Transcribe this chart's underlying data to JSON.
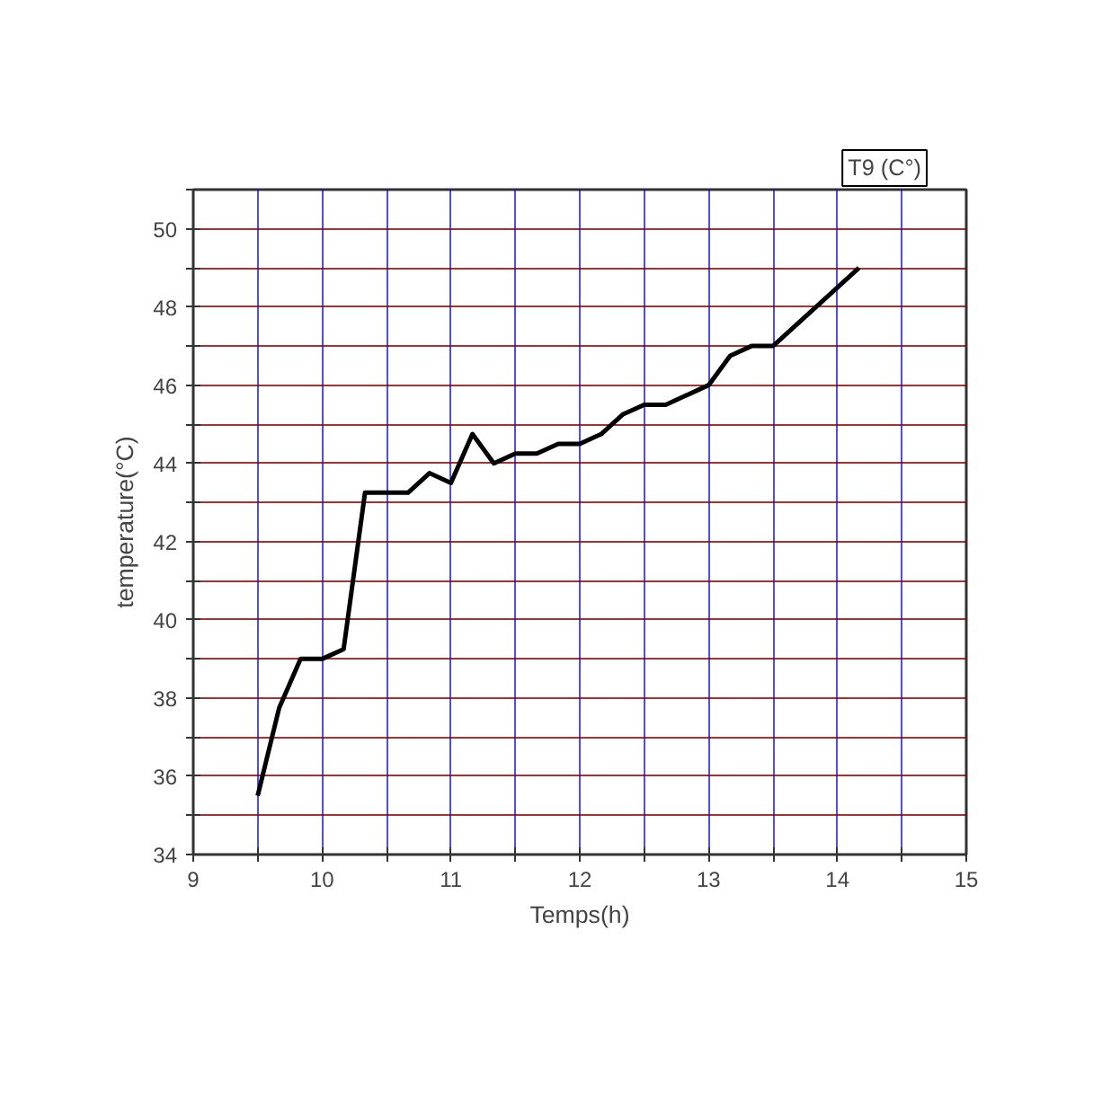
{
  "chart_data": {
    "type": "line",
    "title": "T9 (C°)",
    "xlabel": "Temps(h)",
    "ylabel": "temperature(°C)",
    "x": [
      9.5,
      9.667,
      9.833,
      10,
      10.167,
      10.333,
      10.667,
      10.833,
      11,
      11.167,
      11.333,
      11.5,
      11.667,
      11.833,
      12,
      12.167,
      12.333,
      12.5,
      12.667,
      13,
      13.167,
      13.333,
      13.5,
      14.167
    ],
    "series": [
      {
        "color": "#000000",
        "values": [
          35.5,
          37.75,
          39,
          39,
          39.25,
          43.25,
          43.25,
          43.75,
          43.5,
          44.75,
          44,
          44.25,
          44.25,
          44.5,
          44.5,
          44.75,
          45.25,
          45.5,
          45.5,
          46,
          46.75,
          47,
          47,
          49
        ]
      }
    ],
    "xlim": [
      9,
      15
    ],
    "ylim": [
      34,
      51
    ],
    "xticks": [
      9,
      {
        "value": 9.5,
        "label": null
      },
      10,
      {
        "value": 10.5,
        "label": null
      },
      11,
      {
        "value": 11.5,
        "label": null
      },
      12,
      {
        "value": 12.5,
        "label": null
      },
      13,
      {
        "value": 13.5,
        "label": null
      },
      14,
      {
        "value": 14.5,
        "label": null
      },
      15
    ],
    "yticks": [
      34,
      {
        "value": 35,
        "label": null
      },
      36,
      {
        "value": 37,
        "label": null
      },
      38,
      {
        "value": 39,
        "label": null
      },
      40,
      {
        "value": 41,
        "label": null
      },
      42,
      {
        "value": 43,
        "label": null
      },
      44,
      {
        "value": 45,
        "label": null
      },
      46,
      {
        "value": 47,
        "label": null
      },
      48,
      {
        "value": 49,
        "label": null
      },
      50,
      {
        "value": 51,
        "label": null
      }
    ],
    "grid": true,
    "marker": "none",
    "line_style": "solid"
  }
}
